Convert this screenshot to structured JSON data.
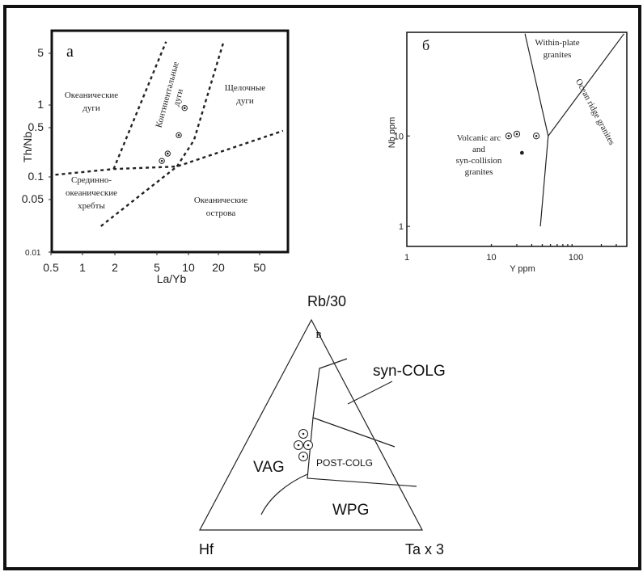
{
  "chart_data": [
    {
      "type": "scatter",
      "panel_label": "а",
      "xlabel": "La/Yb",
      "ylabel": "Th/Nb",
      "xscale": "log",
      "yscale": "log",
      "xlim": [
        0.5,
        70
      ],
      "ylim": [
        0.01,
        8
      ],
      "x_ticks": [
        {
          "value": 0.5,
          "label": "0.5"
        },
        {
          "value": 1,
          "label": "1"
        },
        {
          "value": 2,
          "label": "2"
        },
        {
          "value": 5,
          "label": "5"
        },
        {
          "value": 10,
          "label": "10"
        },
        {
          "value": 20,
          "label": "20"
        },
        {
          "value": 50,
          "label": "50"
        }
      ],
      "y_ticks": [
        {
          "value": 0.01,
          "label": "0.01"
        },
        {
          "value": 0.05,
          "label": "0.05"
        },
        {
          "value": 0.1,
          "label": "0.1"
        },
        {
          "value": 0.5,
          "label": "0.5"
        },
        {
          "value": 1,
          "label": "1"
        },
        {
          "value": 5,
          "label": "5"
        }
      ],
      "fields": [
        {
          "name": "Океанические дуги",
          "lines": [
            "Океанические",
            "дуги"
          ]
        },
        {
          "name": "Континентальные дуги",
          "lines": [
            "Континентальные",
            "дуги"
          ]
        },
        {
          "name": "Щелочные дуги",
          "lines": [
            "Щелочные",
            "дуги"
          ]
        },
        {
          "name": "Срединно-океанические хребты",
          "lines": [
            "Срединно-",
            "океанические",
            "хребты"
          ]
        },
        {
          "name": "Океанические острова",
          "lines": [
            "Океанические",
            "острова"
          ]
        }
      ],
      "boundaries": [
        {
          "points": [
            [
              0.55,
              0.105
            ],
            [
              1.9,
              0.125
            ],
            [
              7.3,
              0.135
            ],
            [
              70,
              0.4
            ]
          ]
        },
        {
          "points": [
            [
              1.9,
              0.125
            ],
            [
              5.8,
              6.0
            ]
          ]
        },
        {
          "points": [
            [
              7.3,
              0.135
            ],
            [
              10.5,
              0.3
            ],
            [
              19.5,
              5.7
            ]
          ]
        },
        {
          "points": [
            [
              1.45,
              0.022
            ],
            [
              7.3,
              0.135
            ]
          ]
        }
      ],
      "points": [
        {
          "x": 5.3,
          "y": 0.16
        },
        {
          "x": 6.0,
          "y": 0.2
        },
        {
          "x": 7.6,
          "y": 0.35
        },
        {
          "x": 8.6,
          "y": 0.8
        }
      ]
    },
    {
      "type": "scatter",
      "panel_label": "б",
      "xlabel": "Y ppm",
      "ylabel": "Nb ppm",
      "xscale": "log",
      "yscale": "log",
      "xlim": [
        1,
        400
      ],
      "ylim": [
        0.6,
        140
      ],
      "x_ticks": [
        {
          "value": 1,
          "label": "1"
        },
        {
          "value": 10,
          "label": "10"
        },
        {
          "value": 100,
          "label": "100"
        }
      ],
      "y_ticks": [
        {
          "value": 1,
          "label": "1"
        },
        {
          "value": 10,
          "label": "10"
        }
      ],
      "fields": [
        {
          "name": "Within-plate granites",
          "lines": [
            "Within-plate",
            "granites"
          ]
        },
        {
          "name": "Ocean ridge granites",
          "lines": [
            "Ocean ridge granites"
          ]
        },
        {
          "name": "Volcanic arc and syn-collision granites",
          "lines": [
            "Volcanic arc",
            "and",
            "syn-collision",
            "granites"
          ]
        }
      ],
      "boundaries": [
        {
          "points": [
            [
              25,
              135
            ],
            [
              47,
              10
            ],
            [
              370,
              135
            ]
          ]
        },
        {
          "points": [
            [
              47,
              10
            ],
            [
              38,
              1
            ]
          ]
        }
      ],
      "points": [
        {
          "x": 16,
          "y": 10
        },
        {
          "x": 20,
          "y": 10.5
        },
        {
          "x": 34,
          "y": 10
        },
        {
          "x": 23,
          "y": 6.5
        }
      ]
    },
    {
      "type": "ternary",
      "panel_label": "в",
      "apices": {
        "top": "Rb/30",
        "left": "Hf",
        "right": "Ta x 3"
      },
      "fields": [
        {
          "name": "syn-COLG",
          "label": "syn-COLG"
        },
        {
          "name": "VAG",
          "label": "VAG"
        },
        {
          "name": "POST-COLG",
          "label": "POST-COLG"
        },
        {
          "name": "WPG",
          "label": "WPG"
        }
      ],
      "points_count": 5
    }
  ]
}
